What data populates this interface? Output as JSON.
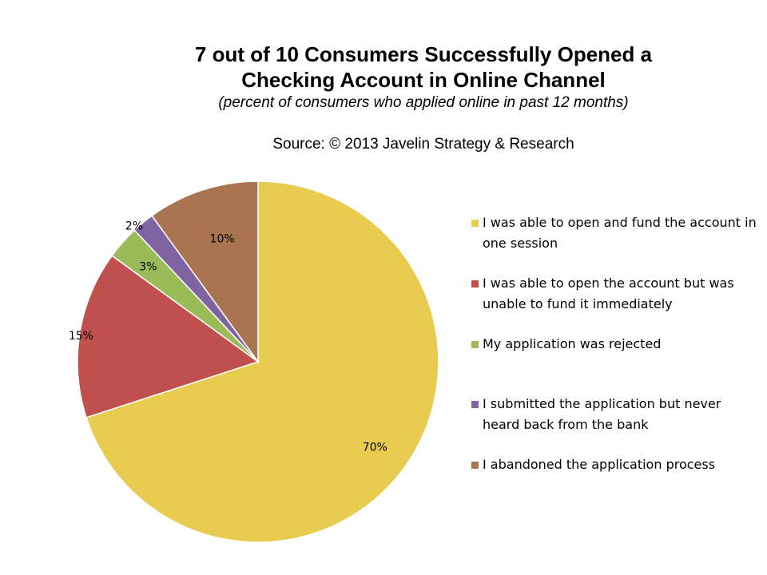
{
  "chart_data": {
    "type": "pie",
    "title_line1": "7 out of 10 Consumers Successfully Opened a",
    "title_line2": "Checking Account in Online Channel",
    "subtitle": "(percent of consumers who applied online in past 12 months)",
    "source": "Source: © 2013 Javelin Strategy & Research",
    "slices": [
      {
        "label": "I was able to open and fund the account in one session",
        "value": 70,
        "value_label": "70%",
        "color": "#E8CC4F"
      },
      {
        "label": "I was able to open the account but was unable to fund it immediately",
        "value": 15,
        "value_label": "15%",
        "color": "#C0504D"
      },
      {
        "label": "My application was rejected",
        "value": 3,
        "value_label": "3%",
        "color": "#9BBB59"
      },
      {
        "label": "I submitted the application but never heard back from the bank",
        "value": 2,
        "value_label": "2%",
        "color": "#8064A2"
      },
      {
        "label": "I abandoned the application process",
        "value": 10,
        "value_label": "10%",
        "color": "#A97551"
      }
    ]
  }
}
